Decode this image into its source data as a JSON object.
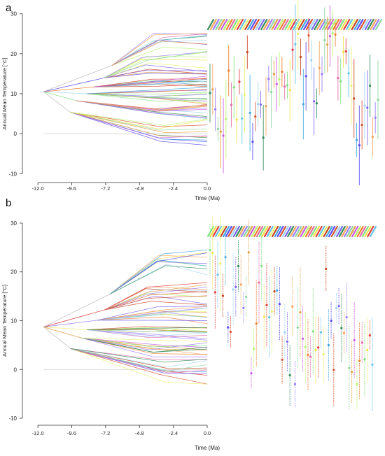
{
  "figure": {
    "ticks_x": [
      "-12.0",
      "-9.6",
      "-7.2",
      "-4.8",
      "-2.4",
      "0.0"
    ],
    "tick_x_values": [
      -12.0,
      -9.6,
      -7.2,
      -4.8,
      -2.4,
      0.0
    ]
  },
  "colors": {
    "root": "#b8b8b8",
    "palette": [
      "#2e8b57",
      "#8bd6a0",
      "#b7f56a",
      "#7fe07f",
      "#5fc3e8",
      "#3fa6e0",
      "#9fd3f0",
      "#f2a15a",
      "#e0a040",
      "#f07b2a",
      "#f2e04a",
      "#e9f26a",
      "#5a4af0",
      "#7b64f0",
      "#9a7bff",
      "#c85ae0",
      "#e36aa6",
      "#e03a3a",
      "#c8401a",
      "#d9502f"
    ]
  },
  "chart_data": [
    {
      "panel": "a",
      "type": "line",
      "xlabel": "Time (Ma)",
      "ylabel": "Annual Mean Temperature [°C]",
      "xlim": [
        -12.8,
        0.0
      ],
      "ylim": [
        -11,
        31
      ],
      "yticks": [
        -10,
        0,
        10,
        20,
        30
      ],
      "root_split_ma": -11.6,
      "root_temp": 10.5,
      "tip_values": [
        10.2,
        11.1,
        6.1,
        1.2,
        0.5,
        -0.5,
        3.7,
        15.8,
        7.2,
        11.6,
        3.5,
        13.0,
        3.8,
        9.8,
        20.4,
        5.2,
        -2.0,
        4.3,
        7.4,
        7.3,
        -1.0,
        6.9,
        13.7,
        10.4,
        14.9,
        12.4,
        13.6,
        15.5,
        11.8,
        12.1,
        10.9,
        21.0,
        22.4,
        25.0,
        19.2,
        7.4,
        14.4,
        24.6,
        18.4,
        8.1,
        7.6,
        16.4,
        14.9,
        23.4,
        22.3,
        24.4,
        25.1,
        24.8,
        13.9,
        13.1,
        20.5,
        20.6,
        15.1,
        12.0,
        8.8,
        -1.6,
        -2.9,
        2.2,
        7.0,
        6.5,
        12.0,
        -0.8,
        4.0,
        8.5
      ]
    },
    {
      "panel": "b",
      "type": "line",
      "xlabel": "Time (Ma)",
      "ylabel": "Annual Mean Temperature [°C]",
      "xlim": [
        -12.8,
        0.0
      ],
      "ylim": [
        -11,
        31
      ],
      "yticks": [
        -10,
        0,
        10,
        20,
        30
      ],
      "root_split_ma": -11.6,
      "root_temp": 8.7,
      "tip_values": [
        24.5,
        23.9,
        15.8,
        19.4,
        21.7,
        15.1,
        23.0,
        8.6,
        7.7,
        16.4,
        16.9,
        21.2,
        17.4,
        12.6,
        14.9,
        24.0,
        -0.8,
        4.2,
        9.4,
        17.8,
        21.2,
        10.8,
        13.2,
        10.7,
        11.9,
        16.0,
        16.2,
        13.4,
        2.0,
        7.6,
        5.7,
        -1.2,
        12.9,
        -3.0,
        8.6,
        11.7,
        6.3,
        4.6,
        3.0,
        2.6,
        7.8,
        4.0,
        4.5,
        7.6,
        3.1,
        20.6,
        5.0,
        10.0,
        -0.1,
        12.6,
        13.0,
        8.5,
        7.5,
        10.7,
        0.3,
        -0.5,
        6.0,
        -3.0,
        1.8,
        5.5,
        2.1,
        4.0,
        7.0,
        1.0
      ]
    }
  ]
}
